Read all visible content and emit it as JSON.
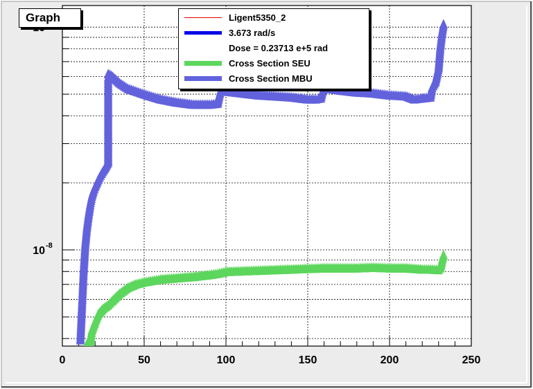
{
  "title": "Graph",
  "legend": [
    {
      "label": "Ligent5350_2",
      "color": "#e00000",
      "style": "thin-line"
    },
    {
      "label": "3.673 rad/s",
      "color": "#0000e6",
      "style": "thick-line"
    },
    {
      "label": "Dose = 0.23713 e+5 rad",
      "color": "",
      "style": "none"
    },
    {
      "label": "Cross Section SEU",
      "color": "#5cd65c",
      "style": "thick-line"
    },
    {
      "label": "Cross Section MBU",
      "color": "#6262dd",
      "style": "thick-line"
    }
  ],
  "chart_data": {
    "type": "scatter",
    "title": "Graph",
    "xlabel": "",
    "ylabel": "",
    "xlim": [
      0,
      250
    ],
    "ylim": [
      3.7e-09,
      1.25e-07
    ],
    "yscale": "log",
    "grid": true,
    "legend_position": "top-center",
    "x_ticks": [
      0,
      50,
      100,
      150,
      200,
      250
    ],
    "x_tick_labels": [
      "0",
      "50",
      "100",
      "150",
      "200",
      "250"
    ],
    "y_tick_labels": [
      {
        "value": 1e-08,
        "base": "10",
        "exp": "-8"
      },
      {
        "value": 1e-07,
        "base": "10",
        "exp": "-7"
      }
    ],
    "series": [
      {
        "name": "Cross Section MBU",
        "color": "#6262dd",
        "marker": "triangle",
        "x": [
          11,
          12,
          13,
          14,
          15,
          16,
          17,
          18,
          19,
          20,
          22,
          24,
          26,
          28,
          28,
          28,
          28,
          28,
          28,
          28,
          28,
          30,
          35,
          40,
          50,
          60,
          70,
          80,
          90,
          95,
          96,
          97,
          100,
          110,
          120,
          130,
          140,
          150,
          155,
          158,
          159,
          160,
          170,
          180,
          190,
          200,
          210,
          215,
          220,
          225,
          226,
          228,
          230,
          231,
          232,
          233
        ],
        "y": [
          3.9e-09,
          5.6e-09,
          8e-09,
          1.05e-08,
          1.25e-08,
          1.42e-08,
          1.58e-08,
          1.72e-08,
          1.82e-08,
          1.9e-08,
          2.05e-08,
          2.18e-08,
          2.3e-08,
          2.45e-08,
          2.9e-08,
          3.5e-08,
          4.1e-08,
          4.7e-08,
          5.3e-08,
          5.9e-08,
          6.1e-08,
          6e-08,
          5.55e-08,
          5.25e-08,
          4.95e-08,
          4.7e-08,
          4.55e-08,
          4.45e-08,
          4.45e-08,
          4.5e-08,
          4.9e-08,
          5.2e-08,
          5.1e-08,
          5e-08,
          4.9e-08,
          4.85e-08,
          4.8e-08,
          4.7e-08,
          4.7e-08,
          4.75e-08,
          5.1e-08,
          5.3e-08,
          5.15e-08,
          5.05e-08,
          5e-08,
          4.9e-08,
          4.85e-08,
          4.7e-08,
          4.75e-08,
          4.8e-08,
          5.3e-08,
          5.6e-08,
          6.5e-08,
          8e-08,
          9.2e-08,
          1.02e-07
        ]
      },
      {
        "name": "Cross Section SEU",
        "color": "#5cd65c",
        "marker": "triangle",
        "x": [
          15,
          17,
          18,
          20,
          22,
          25,
          28,
          30,
          35,
          40,
          45,
          50,
          55,
          60,
          70,
          80,
          90,
          95,
          100,
          110,
          120,
          130,
          140,
          150,
          160,
          170,
          180,
          190,
          200,
          210,
          220,
          225,
          230,
          231,
          232,
          233
        ],
        "y": [
          3.75e-09,
          3.8e-09,
          4.3e-09,
          4.7e-09,
          5.1e-09,
          5.4e-09,
          5.6e-09,
          5.8e-09,
          6.3e-09,
          6.7e-09,
          6.95e-09,
          7.1e-09,
          7.2e-09,
          7.3e-09,
          7.4e-09,
          7.5e-09,
          7.65e-09,
          7.75e-09,
          7.9e-09,
          7.95e-09,
          8e-09,
          8.05e-09,
          8.1e-09,
          8.15e-09,
          8.2e-09,
          8.2e-09,
          8.2e-09,
          8.25e-09,
          8.2e-09,
          8.2e-09,
          8.1e-09,
          8.1e-09,
          8.05e-09,
          8.2e-09,
          8.8e-09,
          9.4e-09
        ]
      }
    ]
  }
}
